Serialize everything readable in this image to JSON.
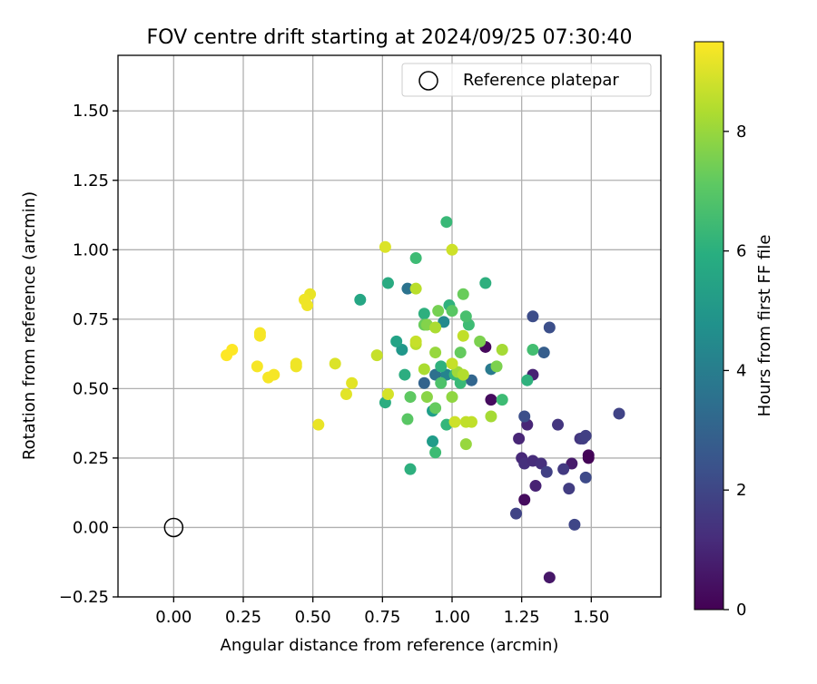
{
  "chart_data": {
    "type": "scatter",
    "title": "FOV centre drift starting at 2024/09/25 07:30:40",
    "xlabel": "Angular distance from reference (arcmin)",
    "ylabel": "Rotation from reference (arcmin)",
    "xlim": [
      -0.2,
      1.75
    ],
    "ylim": [
      -0.25,
      1.7
    ],
    "xticks": [
      "0.00",
      "0.25",
      "0.50",
      "0.75",
      "1.00",
      "1.25",
      "1.50"
    ],
    "yticks": [
      "−0.25",
      "0.00",
      "0.25",
      "0.50",
      "0.75",
      "1.00",
      "1.25",
      "1.50"
    ],
    "grid": true,
    "legend": {
      "position": "top-right",
      "entries": [
        "Reference platepar"
      ]
    },
    "reference_point": {
      "x": 0.0,
      "y": 0.0
    },
    "colorbar": {
      "label": "Hours from first FF file",
      "range": [
        0,
        9.5
      ],
      "ticks": [
        "0",
        "2",
        "4",
        "6",
        "8"
      ],
      "colormap": "viridis"
    },
    "points": [
      {
        "x": 1.12,
        "y": 0.65,
        "h": 0.2
      },
      {
        "x": 1.14,
        "y": 0.46,
        "h": 0.3
      },
      {
        "x": 1.26,
        "y": 0.1,
        "h": 0.3
      },
      {
        "x": 1.49,
        "y": 0.26,
        "h": 0.2
      },
      {
        "x": 1.49,
        "y": 0.25,
        "h": 0.1
      },
      {
        "x": 1.35,
        "y": -0.18,
        "h": 0.6
      },
      {
        "x": 1.3,
        "y": 0.15,
        "h": 0.9
      },
      {
        "x": 1.43,
        "y": 0.23,
        "h": 0.7
      },
      {
        "x": 1.29,
        "y": 0.55,
        "h": 0.9
      },
      {
        "x": 1.27,
        "y": 0.37,
        "h": 1.0
      },
      {
        "x": 1.24,
        "y": 0.32,
        "h": 1.0
      },
      {
        "x": 1.25,
        "y": 0.25,
        "h": 1.1
      },
      {
        "x": 1.26,
        "y": 0.23,
        "h": 1.3
      },
      {
        "x": 1.29,
        "y": 0.24,
        "h": 1.2
      },
      {
        "x": 1.32,
        "y": 0.23,
        "h": 1.3
      },
      {
        "x": 1.34,
        "y": 0.2,
        "h": 1.8
      },
      {
        "x": 1.4,
        "y": 0.21,
        "h": 1.6
      },
      {
        "x": 1.42,
        "y": 0.14,
        "h": 1.7
      },
      {
        "x": 1.46,
        "y": 0.32,
        "h": 1.5
      },
      {
        "x": 1.47,
        "y": 0.32,
        "h": 1.7
      },
      {
        "x": 1.48,
        "y": 0.33,
        "h": 1.8
      },
      {
        "x": 1.38,
        "y": 0.37,
        "h": 1.5
      },
      {
        "x": 1.23,
        "y": 0.05,
        "h": 1.9
      },
      {
        "x": 1.44,
        "y": 0.01,
        "h": 2.0
      },
      {
        "x": 1.48,
        "y": 0.18,
        "h": 2.1
      },
      {
        "x": 1.6,
        "y": 0.41,
        "h": 1.9
      },
      {
        "x": 1.26,
        "y": 0.4,
        "h": 2.3
      },
      {
        "x": 1.29,
        "y": 0.76,
        "h": 2.2
      },
      {
        "x": 1.35,
        "y": 0.72,
        "h": 2.3
      },
      {
        "x": 1.33,
        "y": 0.63,
        "h": 2.8
      },
      {
        "x": 0.9,
        "y": 0.52,
        "h": 3.0
      },
      {
        "x": 1.07,
        "y": 0.53,
        "h": 3.1
      },
      {
        "x": 0.84,
        "y": 0.86,
        "h": 3.6
      },
      {
        "x": 0.94,
        "y": 0.55,
        "h": 3.5
      },
      {
        "x": 1.14,
        "y": 0.57,
        "h": 3.9
      },
      {
        "x": 0.98,
        "y": 0.55,
        "h": 4.3
      },
      {
        "x": 0.97,
        "y": 0.74,
        "h": 4.5
      },
      {
        "x": 0.82,
        "y": 0.64,
        "h": 5.0
      },
      {
        "x": 0.93,
        "y": 0.31,
        "h": 5.2
      },
      {
        "x": 0.93,
        "y": 0.42,
        "h": 5.3
      },
      {
        "x": 0.8,
        "y": 0.67,
        "h": 5.5
      },
      {
        "x": 0.67,
        "y": 0.82,
        "h": 5.6
      },
      {
        "x": 0.77,
        "y": 0.88,
        "h": 5.8
      },
      {
        "x": 0.76,
        "y": 0.45,
        "h": 5.9
      },
      {
        "x": 0.83,
        "y": 0.55,
        "h": 5.9
      },
      {
        "x": 0.85,
        "y": 0.21,
        "h": 6.0
      },
      {
        "x": 0.9,
        "y": 0.77,
        "h": 6.0
      },
      {
        "x": 0.96,
        "y": 0.58,
        "h": 6.1
      },
      {
        "x": 0.99,
        "y": 0.8,
        "h": 6.1
      },
      {
        "x": 1.12,
        "y": 0.88,
        "h": 6.0
      },
      {
        "x": 0.98,
        "y": 0.37,
        "h": 6.3
      },
      {
        "x": 1.01,
        "y": 0.55,
        "h": 6.3
      },
      {
        "x": 1.03,
        "y": 0.52,
        "h": 6.4
      },
      {
        "x": 1.27,
        "y": 0.53,
        "h": 6.1
      },
      {
        "x": 0.87,
        "y": 0.97,
        "h": 6.5
      },
      {
        "x": 0.98,
        "y": 1.1,
        "h": 6.4
      },
      {
        "x": 0.94,
        "y": 0.27,
        "h": 6.5
      },
      {
        "x": 1.06,
        "y": 0.73,
        "h": 6.5
      },
      {
        "x": 1.05,
        "y": 0.76,
        "h": 6.7
      },
      {
        "x": 0.96,
        "y": 0.52,
        "h": 6.8
      },
      {
        "x": 1.29,
        "y": 0.64,
        "h": 6.6
      },
      {
        "x": 1.18,
        "y": 0.46,
        "h": 6.5
      },
      {
        "x": 0.84,
        "y": 0.39,
        "h": 7.0
      },
      {
        "x": 0.85,
        "y": 0.47,
        "h": 7.1
      },
      {
        "x": 0.94,
        "y": 0.43,
        "h": 7.2
      },
      {
        "x": 1.0,
        "y": 0.78,
        "h": 7.0
      },
      {
        "x": 1.03,
        "y": 0.63,
        "h": 7.2
      },
      {
        "x": 1.04,
        "y": 0.84,
        "h": 7.3
      },
      {
        "x": 0.9,
        "y": 0.73,
        "h": 7.3
      },
      {
        "x": 0.95,
        "y": 0.78,
        "h": 7.5
      },
      {
        "x": 1.1,
        "y": 0.67,
        "h": 7.6
      },
      {
        "x": 1.16,
        "y": 0.58,
        "h": 7.6
      },
      {
        "x": 0.91,
        "y": 0.73,
        "h": 7.7
      },
      {
        "x": 0.91,
        "y": 0.47,
        "h": 7.8
      },
      {
        "x": 1.0,
        "y": 0.47,
        "h": 7.9
      },
      {
        "x": 1.05,
        "y": 0.3,
        "h": 8.0
      },
      {
        "x": 0.94,
        "y": 0.63,
        "h": 8.0
      },
      {
        "x": 1.02,
        "y": 0.56,
        "h": 8.1
      },
      {
        "x": 1.14,
        "y": 0.4,
        "h": 8.2
      },
      {
        "x": 1.18,
        "y": 0.64,
        "h": 8.2
      },
      {
        "x": 0.9,
        "y": 0.57,
        "h": 8.3
      },
      {
        "x": 0.94,
        "y": 0.72,
        "h": 8.3
      },
      {
        "x": 1.04,
        "y": 0.55,
        "h": 8.4
      },
      {
        "x": 0.87,
        "y": 0.86,
        "h": 8.5
      },
      {
        "x": 0.87,
        "y": 0.66,
        "h": 8.5
      },
      {
        "x": 1.04,
        "y": 0.69,
        "h": 8.6
      },
      {
        "x": 1.05,
        "y": 0.38,
        "h": 8.6
      },
      {
        "x": 1.07,
        "y": 0.38,
        "h": 8.6
      },
      {
        "x": 1.0,
        "y": 0.59,
        "h": 8.7
      },
      {
        "x": 0.87,
        "y": 0.67,
        "h": 8.7
      },
      {
        "x": 1.01,
        "y": 0.38,
        "h": 8.8
      },
      {
        "x": 0.73,
        "y": 0.62,
        "h": 8.7
      },
      {
        "x": 1.0,
        "y": 1.0,
        "h": 8.8
      },
      {
        "x": 0.77,
        "y": 0.48,
        "h": 8.9
      },
      {
        "x": 0.76,
        "y": 1.01,
        "h": 9.0
      },
      {
        "x": 0.58,
        "y": 0.59,
        "h": 9.0
      },
      {
        "x": 0.64,
        "y": 0.52,
        "h": 9.1
      },
      {
        "x": 0.62,
        "y": 0.48,
        "h": 9.1
      },
      {
        "x": 0.52,
        "y": 0.37,
        "h": 9.2
      },
      {
        "x": 0.49,
        "y": 0.84,
        "h": 9.2
      },
      {
        "x": 0.47,
        "y": 0.82,
        "h": 9.3
      },
      {
        "x": 0.48,
        "y": 0.8,
        "h": 9.3
      },
      {
        "x": 0.44,
        "y": 0.59,
        "h": 9.3
      },
      {
        "x": 0.44,
        "y": 0.58,
        "h": 9.3
      },
      {
        "x": 0.36,
        "y": 0.55,
        "h": 9.4
      },
      {
        "x": 0.34,
        "y": 0.54,
        "h": 9.4
      },
      {
        "x": 0.31,
        "y": 0.69,
        "h": 9.4
      },
      {
        "x": 0.31,
        "y": 0.7,
        "h": 9.4
      },
      {
        "x": 0.3,
        "y": 0.58,
        "h": 9.4
      },
      {
        "x": 0.21,
        "y": 0.64,
        "h": 9.5
      },
      {
        "x": 0.19,
        "y": 0.62,
        "h": 9.5
      }
    ]
  }
}
